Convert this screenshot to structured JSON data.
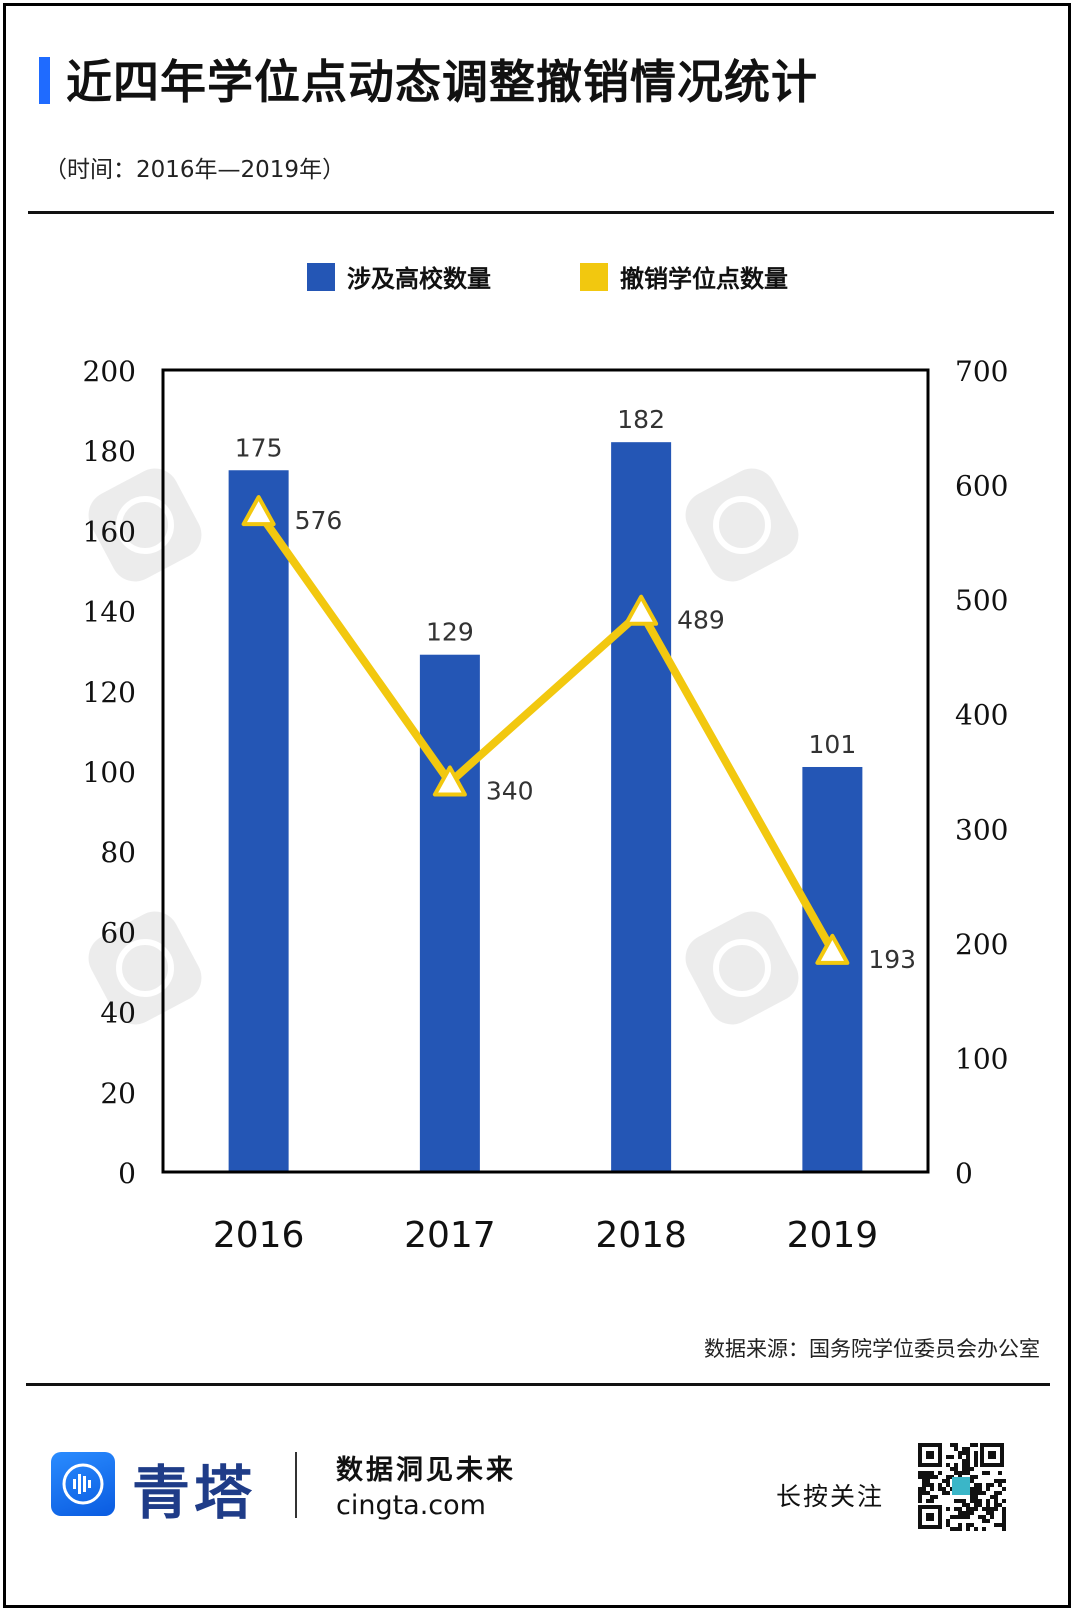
{
  "header": {
    "title": "近四年学位点动态调整撤销情况统计",
    "subtitle": "（时间：2016年—2019年）"
  },
  "colors": {
    "accent": "#1f6bff",
    "bar": "#2456b5",
    "line": "#f2c80f",
    "text": "#111111"
  },
  "chart_data": {
    "type": "bar",
    "categories": [
      "2016",
      "2017",
      "2018",
      "2019"
    ],
    "series": [
      {
        "name": "涉及高校数量",
        "type": "bar",
        "axis": "left",
        "values": [
          175,
          129,
          182,
          101
        ]
      },
      {
        "name": "撤销学位点数量",
        "type": "line",
        "axis": "right",
        "values": [
          576,
          340,
          489,
          193
        ]
      }
    ],
    "y_left": {
      "min": 0,
      "max": 200,
      "ticks": [
        0,
        20,
        40,
        60,
        80,
        100,
        120,
        140,
        160,
        180,
        200
      ]
    },
    "y_right": {
      "min": 0,
      "max": 700,
      "ticks": [
        0,
        100,
        200,
        300,
        400,
        500,
        600,
        700
      ]
    },
    "legend_position": "top-center",
    "grid": false
  },
  "source": "数据来源：国务院学位委员会办公室",
  "footer": {
    "brand_name": "青塔",
    "slogan": "数据洞见未来",
    "url": "cingta.com",
    "follow_text": "长按关注",
    "logo_icon": "sound-wave-icon"
  }
}
